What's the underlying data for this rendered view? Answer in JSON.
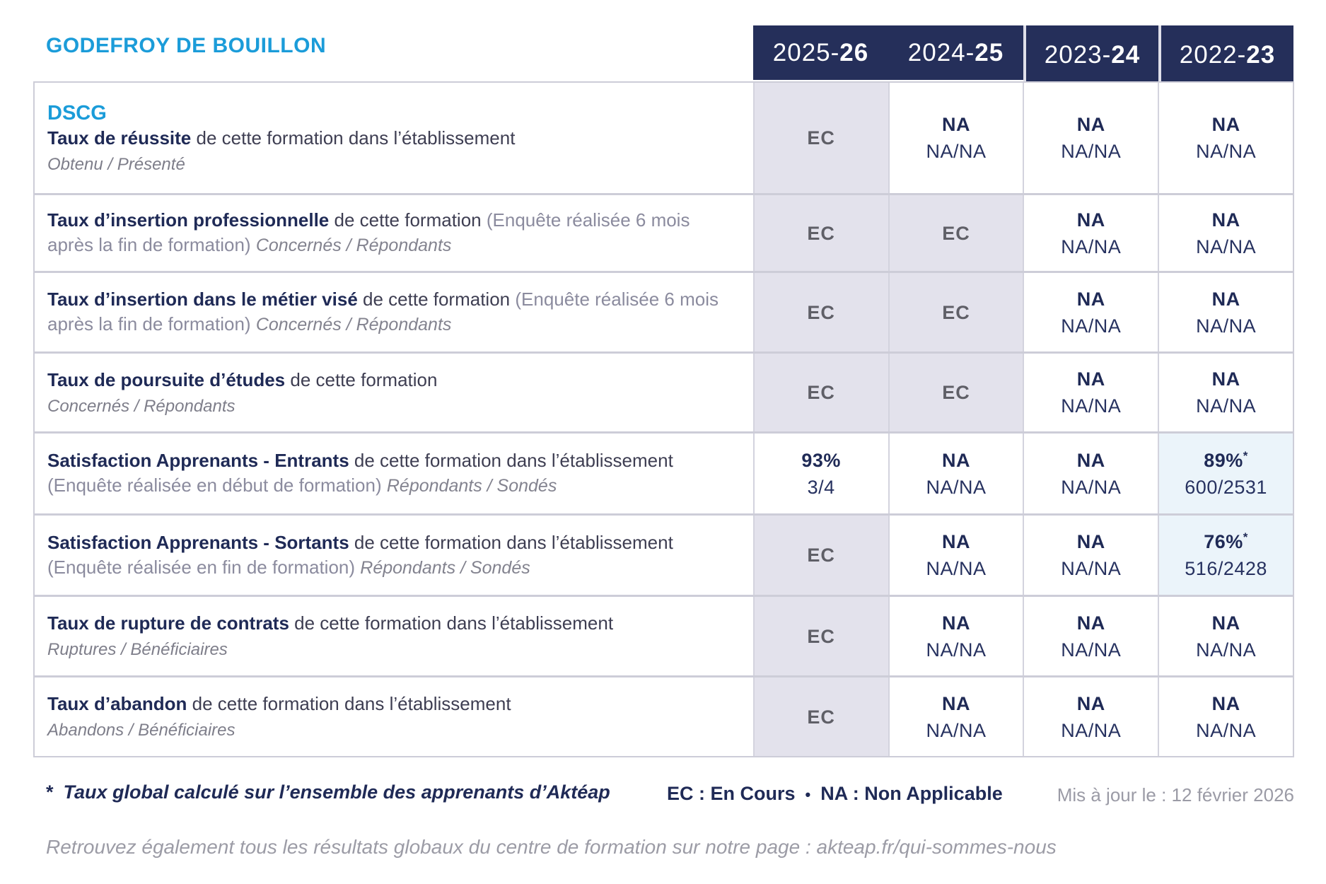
{
  "page": {
    "org_name": "GODEFROY DE BOUILLON",
    "program": "DSCG",
    "footnote_star": "*",
    "footnote": "Taux global calculé sur l’ensemble des apprenants d’Aktéap",
    "legend_ec": "EC : En Cours",
    "legend_sep": "•",
    "legend_na": "NA : Non Applicable",
    "updated": "Mis à jour le : 12 février 2026",
    "bottom_note": "Retrouvez également tous les résultats globaux du centre de formation sur notre page : akteap.fr/qui-sommes-nous"
  },
  "columns": [
    {
      "pre": "2025-",
      "bold": "26"
    },
    {
      "pre": "2024-",
      "bold": "25"
    },
    {
      "pre": "2023-",
      "bold": "24"
    },
    {
      "pre": "2022-",
      "bold": "23"
    }
  ],
  "rows": [
    {
      "title": "Taux de réussite",
      "desc": "de cette formation dans l’établissement",
      "sub_block": "Obtenu / Présenté",
      "values": [
        {
          "main": "EC"
        },
        {
          "main": "NA",
          "sub": "NA/NA"
        },
        {
          "main": "NA",
          "sub": "NA/NA"
        },
        {
          "main": "NA",
          "sub": "NA/NA"
        }
      ]
    },
    {
      "title": "Taux d’insertion professionnelle",
      "desc": "de cette formation",
      "paren": "(Enquête réalisée 6 mois après la fin de formation)",
      "sub_inline": "Concernés / Répondants",
      "values": [
        {
          "main": "EC"
        },
        {
          "main": "EC"
        },
        {
          "main": "NA",
          "sub": "NA/NA"
        },
        {
          "main": "NA",
          "sub": "NA/NA"
        }
      ]
    },
    {
      "title": "Taux d’insertion dans le métier visé",
      "desc": "de cette formation",
      "paren": "(Enquête réalisée 6 mois après la fin de formation)",
      "sub_inline": "Concernés / Répondants",
      "values": [
        {
          "main": "EC"
        },
        {
          "main": "EC"
        },
        {
          "main": "NA",
          "sub": "NA/NA"
        },
        {
          "main": "NA",
          "sub": "NA/NA"
        }
      ]
    },
    {
      "title": "Taux de poursuite d’études",
      "desc": "de cette formation",
      "sub_block": "Concernés / Répondants",
      "values": [
        {
          "main": "EC"
        },
        {
          "main": "EC"
        },
        {
          "main": "NA",
          "sub": "NA/NA"
        },
        {
          "main": "NA",
          "sub": "NA/NA"
        }
      ]
    },
    {
      "title": "Satisfaction Apprenants - Entrants",
      "desc": "de cette formation dans l’établissement",
      "paren": "(Enquête réalisée en début de formation)",
      "sub_inline": "Répondants / Sondés",
      "values": [
        {
          "main": "93%",
          "sub": "3/4"
        },
        {
          "main": "NA",
          "sub": "NA/NA"
        },
        {
          "main": "NA",
          "sub": "NA/NA"
        },
        {
          "main": "89%",
          "star": "*",
          "sub": "600/2531"
        }
      ]
    },
    {
      "title": "Satisfaction Apprenants - Sortants",
      "desc": "de cette formation dans l’établissement",
      "paren": "(Enquête réalisée en fin de formation)",
      "sub_inline": "Répondants / Sondés",
      "values": [
        {
          "main": "EC"
        },
        {
          "main": "NA",
          "sub": "NA/NA"
        },
        {
          "main": "NA",
          "sub": "NA/NA"
        },
        {
          "main": "76%",
          "star": "*",
          "sub": "516/2428"
        }
      ]
    },
    {
      "title": "Taux de rupture de contrats",
      "desc": "de cette formation dans l’établissement",
      "sub_block": "Ruptures / Bénéficiaires",
      "values": [
        {
          "main": "EC"
        },
        {
          "main": "NA",
          "sub": "NA/NA"
        },
        {
          "main": "NA",
          "sub": "NA/NA"
        },
        {
          "main": "NA",
          "sub": "NA/NA"
        }
      ]
    },
    {
      "title": "Taux d’abandon",
      "desc": "de cette formation dans l’établissement",
      "sub_block": "Abandons / Bénéficiaires",
      "values": [
        {
          "main": "EC"
        },
        {
          "main": "NA",
          "sub": "NA/NA"
        },
        {
          "main": "NA",
          "sub": "NA/NA"
        },
        {
          "main": "NA",
          "sub": "NA/NA"
        }
      ]
    }
  ],
  "colors": {
    "accent_blue": "#1B9CD9",
    "navy": "#1F2A56",
    "header_navy": "#252F5A",
    "cell_lavender": "#E3E2EC",
    "cell_highlight_blue": "#EBF4FA",
    "grid_gray": "#CDCDD8",
    "text_gray": "#8B8B9E"
  }
}
